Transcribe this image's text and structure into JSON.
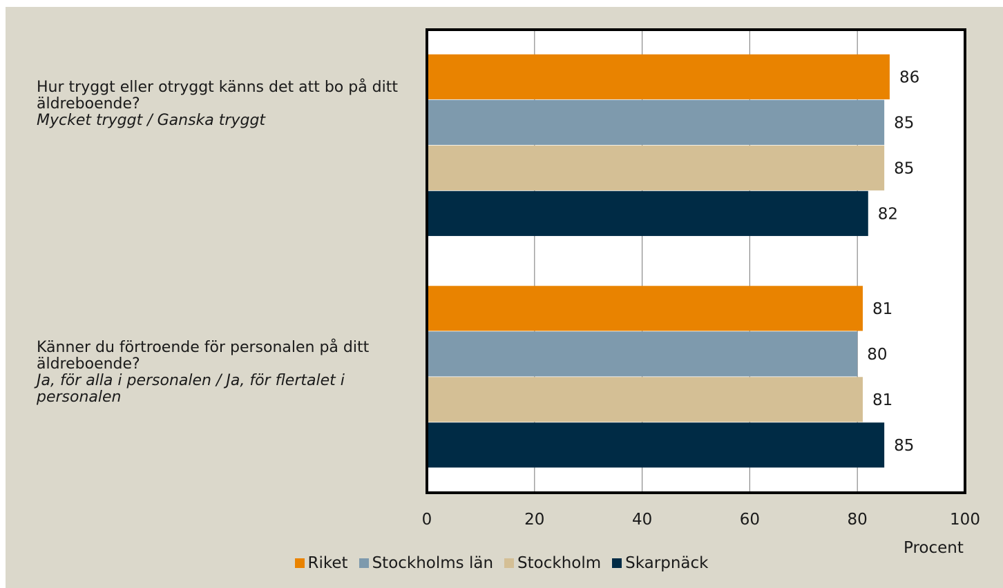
{
  "chart_data": {
    "type": "bar",
    "orientation": "horizontal",
    "categories": [
      {
        "question": "Hur tryggt eller otryggt känns det att bo på ditt äldreboende?",
        "answer": "Mycket tryggt / Ganska tryggt"
      },
      {
        "question": "Känner du förtroende för personalen på ditt äldreboende?",
        "answer": "Ja, för alla i personalen / Ja, för flertalet i personalen"
      }
    ],
    "series": [
      {
        "name": "Riket",
        "color": "#e98300",
        "values": [
          86,
          81
        ]
      },
      {
        "name": "Stockholms län",
        "color": "#7e9aad",
        "values": [
          85,
          80
        ]
      },
      {
        "name": "Stockholm",
        "color": "#d4bf95",
        "values": [
          85,
          81
        ]
      },
      {
        "name": "Skarpnäck",
        "color": "#002b45",
        "values": [
          82,
          85
        ]
      }
    ],
    "xlabel": "Procent",
    "xlim": [
      0,
      100
    ],
    "xticks": [
      0,
      20,
      40,
      60,
      80,
      100
    ],
    "grid": "vertical",
    "legend_position": "bottom",
    "data_labels": true
  }
}
